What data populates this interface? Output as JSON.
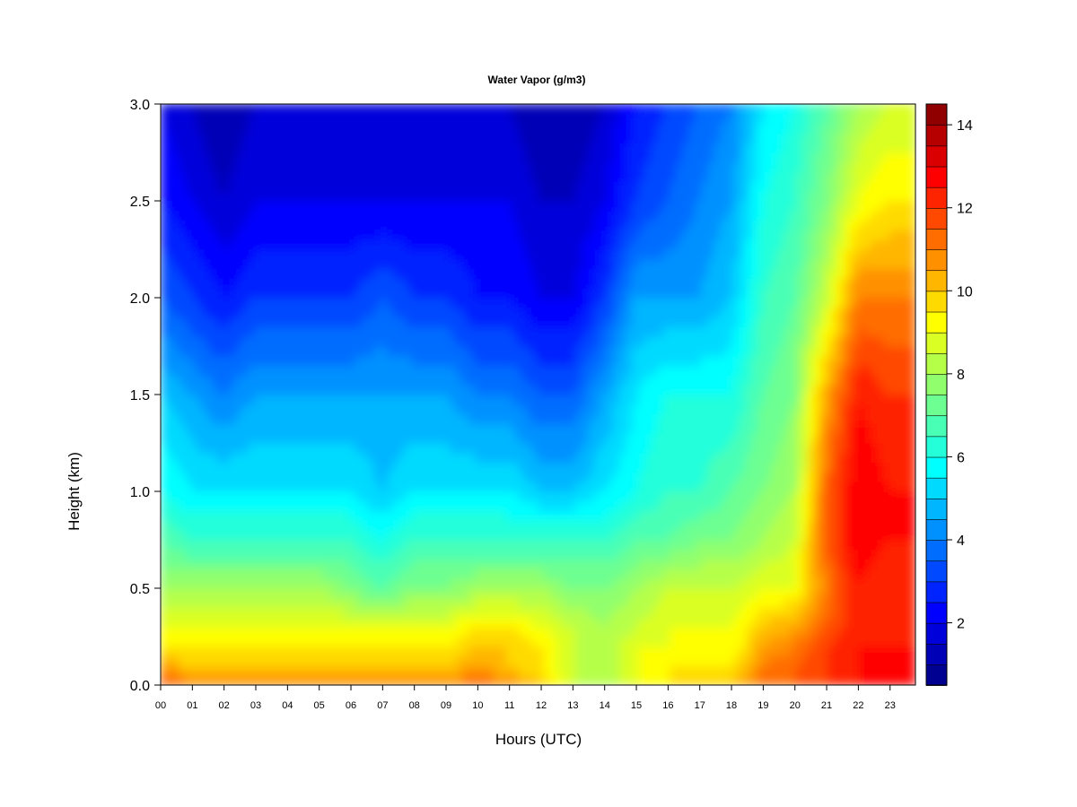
{
  "chart_data": {
    "type": "heatmap",
    "title": "Water Vapor (g/m3)",
    "xlabel": "Hours (UTC)",
    "ylabel": "Height (km)",
    "x_ticks": [
      "00",
      "01",
      "02",
      "03",
      "04",
      "05",
      "06",
      "07",
      "08",
      "09",
      "10",
      "11",
      "12",
      "13",
      "14",
      "15",
      "16",
      "17",
      "18",
      "19",
      "20",
      "21",
      "22",
      "23"
    ],
    "y_ticks": [
      "0.0",
      "0.5",
      "1.0",
      "1.5",
      "2.0",
      "2.5",
      "3.0"
    ],
    "xlim": [
      0,
      23.8
    ],
    "ylim": [
      0,
      3.0
    ],
    "x_hours": [
      0,
      1,
      2,
      3,
      4,
      5,
      6,
      7,
      8,
      9,
      10,
      11,
      12,
      13,
      14,
      15,
      16,
      17,
      18,
      19,
      20,
      21,
      22,
      23
    ],
    "y_km": [
      0.0,
      0.1,
      0.2,
      0.3,
      0.5,
      0.75,
      1.0,
      1.5,
      2.0,
      2.5,
      3.0
    ],
    "values_by_height": [
      [
        12,
        11,
        11,
        11,
        11,
        11,
        11,
        11,
        11,
        11,
        11.5,
        11,
        10,
        8.5,
        8,
        9,
        9.5,
        9.5,
        10,
        11.5,
        11.5,
        12,
        12.5,
        12.5
      ],
      [
        10.5,
        10,
        10,
        10,
        10,
        10,
        10,
        10,
        10,
        10,
        10.5,
        10,
        9.5,
        8.5,
        8,
        9,
        9.5,
        9.5,
        9.5,
        11,
        11.5,
        12,
        12.5,
        12.5
      ],
      [
        9.5,
        9.5,
        9.5,
        9.5,
        9.5,
        9.5,
        9.5,
        9.5,
        9.5,
        9.5,
        10,
        10,
        9.5,
        8.5,
        8,
        9,
        9,
        9,
        9,
        10.5,
        11,
        12,
        12.5,
        12.5
      ],
      [
        9,
        9,
        9,
        9,
        9,
        9,
        9,
        9,
        9,
        9,
        9.5,
        9.5,
        9,
        8.5,
        8,
        8.5,
        9,
        9,
        9,
        10,
        10.5,
        11.5,
        12.5,
        12
      ],
      [
        8,
        8,
        8,
        8,
        8,
        8,
        7.5,
        7,
        7.5,
        7.5,
        8,
        8,
        8,
        7.5,
        7.5,
        8,
        8.5,
        8.5,
        8.5,
        9,
        9,
        11,
        12.5,
        12
      ],
      [
        7,
        6.5,
        6.5,
        6.5,
        6.5,
        6.5,
        6.5,
        6,
        6.5,
        6.5,
        6.5,
        6.5,
        6.5,
        6.5,
        6.5,
        7,
        7,
        7.5,
        7.5,
        8,
        8.5,
        11.5,
        13,
        12.5
      ],
      [
        6,
        5.5,
        5.5,
        5.5,
        5.5,
        5.5,
        5.5,
        5,
        5.5,
        5.5,
        5.5,
        5.5,
        5,
        5,
        5.5,
        6,
        6.5,
        6.5,
        7,
        7.5,
        8,
        11.5,
        13,
        12.5
      ],
      [
        5,
        4.5,
        4,
        4.5,
        4.5,
        4.5,
        4.5,
        4.5,
        4.5,
        4.5,
        4,
        4,
        3.5,
        3.5,
        4.5,
        5.5,
        6,
        6,
        6,
        7,
        7.5,
        10.5,
        12.5,
        12
      ],
      [
        3.5,
        3,
        2.5,
        3,
        3,
        3,
        3,
        3.5,
        3,
        3,
        2.5,
        2.5,
        2,
        2,
        3,
        4.5,
        4.5,
        4.5,
        5,
        6.5,
        7,
        8.5,
        11,
        11
      ],
      [
        2.5,
        2,
        1.5,
        2,
        2,
        2,
        2,
        2,
        2,
        2,
        2,
        2,
        1.5,
        1.5,
        2,
        3,
        3.5,
        4,
        4.5,
        6,
        6.5,
        7.5,
        9,
        9.5
      ],
      [
        2,
        1.5,
        1,
        1.5,
        1.5,
        1.5,
        1.5,
        1.5,
        1.5,
        1.5,
        1.5,
        1.5,
        1,
        1,
        1.5,
        2.5,
        3,
        3.5,
        4,
        5.5,
        6,
        7,
        8,
        8.5
      ]
    ],
    "colorbar": {
      "min": 0.5,
      "max": 14.5,
      "step": 0.5,
      "ticks": [
        "2",
        "4",
        "6",
        "8",
        "10",
        "12",
        "14"
      ],
      "tick_values": [
        2,
        4,
        6,
        8,
        10,
        12,
        14
      ],
      "palette": [
        "#00007f",
        "#0000ff",
        "#007fff",
        "#00ffff",
        "#7fff7f",
        "#ffff00",
        "#ff7f00",
        "#ff0000",
        "#7f0000"
      ]
    },
    "grid": false,
    "legend": "right colorbar"
  }
}
